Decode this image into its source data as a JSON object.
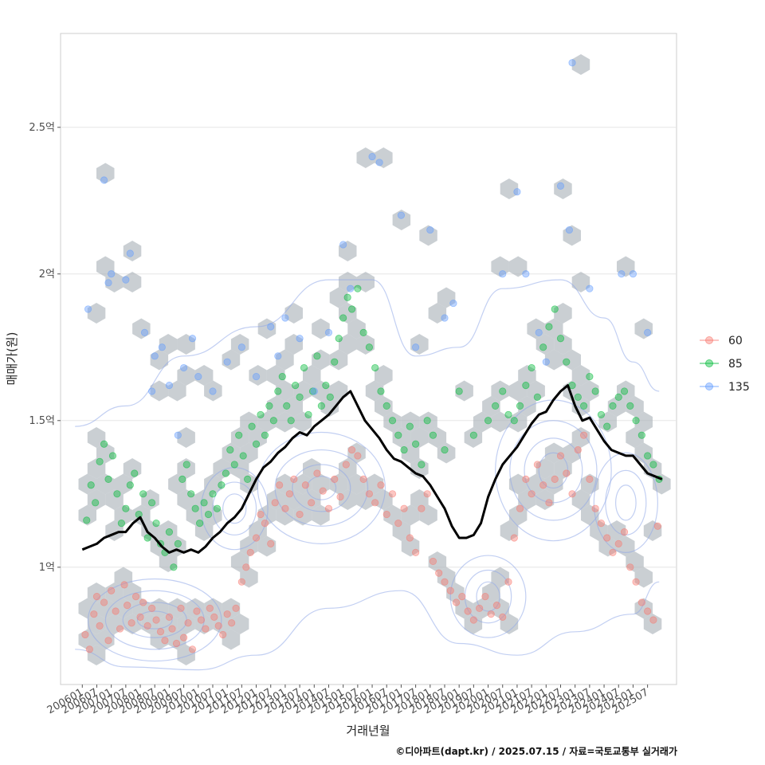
{
  "chart_data": {
    "type": "scatter",
    "title": "",
    "xlabel": "거래년월",
    "ylabel": "매매가(원)",
    "caption": "©디아파트(dapt.kr) / 2025.07.15 / 자료=국토교통부 실거래가",
    "x_ticks": [
      "200601",
      "200607",
      "200701",
      "200707",
      "200801",
      "200807",
      "200901",
      "200907",
      "201001",
      "201007",
      "201101",
      "201107",
      "201201",
      "201207",
      "201301",
      "201307",
      "201401",
      "201407",
      "201501",
      "201507",
      "201601",
      "201607",
      "201701",
      "201707",
      "201801",
      "201807",
      "201901",
      "201907",
      "202001",
      "202007",
      "202101",
      "202107",
      "202201",
      "202207",
      "202301",
      "202307",
      "202401",
      "202407",
      "202501",
      "202507"
    ],
    "y_ticks": [
      {
        "value": 1.0,
        "label": "1억"
      },
      {
        "value": 1.5,
        "label": "1.5억"
      },
      {
        "value": 2.0,
        "label": "2억"
      },
      {
        "value": 2.5,
        "label": "2.5억"
      }
    ],
    "ylim": [
      0.6,
      2.82
    ],
    "xlim": [
      -1.5,
      41
    ],
    "grid": true,
    "legend": {
      "position": "right",
      "entries": [
        {
          "label": "60",
          "color": "#F8766D"
        },
        {
          "label": "85",
          "color": "#00BA38"
        },
        {
          "label": "135",
          "color": "#619CFF"
        }
      ]
    },
    "moving_average": {
      "color": "#000000",
      "x": [
        0,
        0.5,
        1,
        1.5,
        2,
        2.5,
        3,
        3.5,
        4,
        4.5,
        5,
        5.5,
        6,
        6.5,
        7,
        7.5,
        8,
        8.5,
        9,
        9.5,
        10,
        10.5,
        11,
        11.5,
        12,
        12.5,
        13,
        13.5,
        14,
        14.5,
        15,
        15.5,
        16,
        16.5,
        17,
        17.5,
        18,
        18.5,
        19,
        19.5,
        20,
        20.5,
        21,
        21.5,
        22,
        22.5,
        23,
        23.5,
        24,
        24.5,
        25,
        25.5,
        26,
        26.5,
        27,
        27.5,
        28,
        28.5,
        29,
        29.5,
        30,
        30.5,
        31,
        31.5,
        32,
        32.5,
        33,
        33.5,
        34,
        34.5,
        35,
        35.5,
        36,
        36.5,
        37,
        37.5,
        38,
        38.5,
        39,
        39.5,
        40
      ],
      "y": [
        1.06,
        1.07,
        1.08,
        1.1,
        1.11,
        1.12,
        1.12,
        1.15,
        1.17,
        1.12,
        1.1,
        1.07,
        1.05,
        1.06,
        1.05,
        1.06,
        1.05,
        1.07,
        1.1,
        1.12,
        1.15,
        1.17,
        1.2,
        1.25,
        1.3,
        1.34,
        1.36,
        1.39,
        1.41,
        1.44,
        1.46,
        1.45,
        1.48,
        1.5,
        1.52,
        1.55,
        1.58,
        1.6,
        1.55,
        1.5,
        1.47,
        1.44,
        1.4,
        1.37,
        1.36,
        1.34,
        1.32,
        1.31,
        1.28,
        1.24,
        1.2,
        1.14,
        1.1,
        1.1,
        1.11,
        1.15,
        1.24,
        1.3,
        1.35,
        1.38,
        1.41,
        1.45,
        1.49,
        1.52,
        1.53,
        1.57,
        1.6,
        1.62,
        1.55,
        1.5,
        1.51,
        1.47,
        1.43,
        1.4,
        1.39,
        1.38,
        1.38,
        1.35,
        1.32,
        1.31,
        1.3
      ]
    },
    "series": [
      {
        "name": "60",
        "color": "#F8766D",
        "points": [
          [
            0.2,
            0.77
          ],
          [
            0.5,
            0.72
          ],
          [
            0.8,
            0.84
          ],
          [
            1.0,
            0.9
          ],
          [
            1.2,
            0.8
          ],
          [
            1.5,
            0.88
          ],
          [
            1.8,
            0.75
          ],
          [
            2.0,
            0.92
          ],
          [
            2.3,
            0.85
          ],
          [
            2.6,
            0.79
          ],
          [
            2.9,
            0.94
          ],
          [
            3.1,
            0.87
          ],
          [
            3.4,
            0.81
          ],
          [
            3.7,
            0.9
          ],
          [
            4.0,
            0.83
          ],
          [
            4.2,
            0.88
          ],
          [
            4.5,
            0.8
          ],
          [
            4.8,
            0.86
          ],
          [
            5.1,
            0.82
          ],
          [
            5.4,
            0.78
          ],
          [
            5.7,
            0.75
          ],
          [
            6.0,
            0.83
          ],
          [
            6.2,
            0.79
          ],
          [
            6.5,
            0.74
          ],
          [
            6.8,
            0.86
          ],
          [
            7.0,
            0.76
          ],
          [
            7.3,
            0.81
          ],
          [
            7.6,
            0.72
          ],
          [
            7.9,
            0.85
          ],
          [
            8.2,
            0.82
          ],
          [
            8.5,
            0.79
          ],
          [
            8.8,
            0.86
          ],
          [
            9.1,
            0.83
          ],
          [
            9.4,
            0.8
          ],
          [
            9.7,
            0.77
          ],
          [
            10.0,
            0.84
          ],
          [
            10.3,
            0.81
          ],
          [
            10.6,
            0.86
          ],
          [
            11.0,
            0.95
          ],
          [
            11.3,
            1.0
          ],
          [
            11.6,
            1.05
          ],
          [
            12.0,
            1.1
          ],
          [
            12.3,
            1.18
          ],
          [
            12.6,
            1.15
          ],
          [
            13.0,
            1.08
          ],
          [
            13.3,
            1.22
          ],
          [
            13.6,
            1.28
          ],
          [
            14.0,
            1.2
          ],
          [
            14.3,
            1.25
          ],
          [
            14.6,
            1.3
          ],
          [
            15.0,
            1.18
          ],
          [
            15.4,
            1.28
          ],
          [
            15.8,
            1.22
          ],
          [
            16.2,
            1.32
          ],
          [
            16.6,
            1.26
          ],
          [
            17.0,
            1.2
          ],
          [
            17.4,
            1.3
          ],
          [
            17.8,
            1.24
          ],
          [
            18.2,
            1.35
          ],
          [
            18.6,
            1.4
          ],
          [
            19.0,
            1.38
          ],
          [
            19.4,
            1.3
          ],
          [
            19.8,
            1.25
          ],
          [
            20.2,
            1.22
          ],
          [
            20.6,
            1.28
          ],
          [
            21.0,
            1.18
          ],
          [
            21.4,
            1.25
          ],
          [
            21.8,
            1.15
          ],
          [
            22.2,
            1.2
          ],
          [
            22.6,
            1.1
          ],
          [
            23.0,
            1.05
          ],
          [
            23.4,
            1.2
          ],
          [
            23.8,
            1.25
          ],
          [
            24.2,
            1.02
          ],
          [
            24.6,
            0.98
          ],
          [
            25.0,
            0.95
          ],
          [
            25.4,
            0.92
          ],
          [
            25.8,
            0.88
          ],
          [
            26.2,
            0.9
          ],
          [
            26.6,
            0.85
          ],
          [
            27.0,
            0.82
          ],
          [
            27.4,
            0.86
          ],
          [
            27.8,
            0.9
          ],
          [
            28.2,
            0.84
          ],
          [
            28.6,
            0.87
          ],
          [
            29.0,
            0.83
          ],
          [
            29.4,
            0.95
          ],
          [
            29.8,
            1.1
          ],
          [
            30.2,
            1.2
          ],
          [
            30.6,
            1.3
          ],
          [
            31.0,
            1.25
          ],
          [
            31.4,
            1.35
          ],
          [
            31.8,
            1.28
          ],
          [
            32.2,
            1.22
          ],
          [
            32.6,
            1.3
          ],
          [
            33.0,
            1.38
          ],
          [
            33.4,
            1.32
          ],
          [
            33.8,
            1.25
          ],
          [
            34.2,
            1.4
          ],
          [
            34.6,
            1.45
          ],
          [
            35.0,
            1.3
          ],
          [
            35.4,
            1.2
          ],
          [
            35.8,
            1.15
          ],
          [
            36.2,
            1.1
          ],
          [
            36.6,
            1.05
          ],
          [
            37.0,
            1.08
          ],
          [
            37.4,
            1.12
          ],
          [
            37.8,
            1.0
          ],
          [
            38.2,
            0.95
          ],
          [
            38.6,
            0.88
          ],
          [
            39.0,
            0.85
          ],
          [
            39.4,
            0.82
          ],
          [
            39.7,
            1.14
          ]
        ]
      },
      {
        "name": "85",
        "color": "#00BA38",
        "points": [
          [
            0.3,
            1.16
          ],
          [
            0.6,
            1.28
          ],
          [
            0.9,
            1.22
          ],
          [
            1.2,
            1.36
          ],
          [
            1.5,
            1.42
          ],
          [
            1.8,
            1.3
          ],
          [
            2.1,
            1.38
          ],
          [
            2.4,
            1.25
          ],
          [
            2.7,
            1.15
          ],
          [
            3.0,
            1.2
          ],
          [
            3.3,
            1.28
          ],
          [
            3.6,
            1.32
          ],
          [
            3.9,
            1.18
          ],
          [
            4.2,
            1.25
          ],
          [
            4.5,
            1.1
          ],
          [
            4.8,
            1.22
          ],
          [
            5.1,
            1.15
          ],
          [
            5.4,
            1.08
          ],
          [
            5.7,
            1.05
          ],
          [
            6.0,
            1.12
          ],
          [
            6.3,
            1.0
          ],
          [
            6.6,
            1.08
          ],
          [
            6.9,
            1.3
          ],
          [
            7.2,
            1.35
          ],
          [
            7.5,
            1.25
          ],
          [
            7.8,
            1.2
          ],
          [
            8.1,
            1.15
          ],
          [
            8.4,
            1.22
          ],
          [
            8.7,
            1.18
          ],
          [
            9.0,
            1.25
          ],
          [
            9.3,
            1.2
          ],
          [
            9.6,
            1.28
          ],
          [
            9.9,
            1.32
          ],
          [
            10.2,
            1.4
          ],
          [
            10.5,
            1.35
          ],
          [
            10.8,
            1.45
          ],
          [
            11.1,
            1.38
          ],
          [
            11.4,
            1.3
          ],
          [
            11.7,
            1.48
          ],
          [
            12.0,
            1.42
          ],
          [
            12.3,
            1.52
          ],
          [
            12.6,
            1.45
          ],
          [
            12.9,
            1.55
          ],
          [
            13.2,
            1.5
          ],
          [
            13.5,
            1.6
          ],
          [
            13.8,
            1.65
          ],
          [
            14.1,
            1.55
          ],
          [
            14.4,
            1.5
          ],
          [
            14.7,
            1.62
          ],
          [
            15.0,
            1.58
          ],
          [
            15.3,
            1.68
          ],
          [
            15.6,
            1.52
          ],
          [
            15.9,
            1.6
          ],
          [
            16.2,
            1.72
          ],
          [
            16.5,
            1.55
          ],
          [
            16.8,
            1.62
          ],
          [
            17.1,
            1.58
          ],
          [
            17.4,
            1.7
          ],
          [
            17.7,
            1.78
          ],
          [
            18.0,
            1.85
          ],
          [
            18.3,
            1.92
          ],
          [
            18.6,
            1.88
          ],
          [
            19.0,
            1.95
          ],
          [
            19.4,
            1.8
          ],
          [
            19.8,
            1.75
          ],
          [
            20.2,
            1.68
          ],
          [
            20.6,
            1.6
          ],
          [
            21.0,
            1.55
          ],
          [
            21.4,
            1.5
          ],
          [
            21.8,
            1.45
          ],
          [
            22.2,
            1.4
          ],
          [
            22.6,
            1.48
          ],
          [
            23.0,
            1.42
          ],
          [
            23.4,
            1.35
          ],
          [
            23.8,
            1.5
          ],
          [
            24.2,
            1.45
          ],
          [
            25.0,
            1.4
          ],
          [
            26.0,
            1.6
          ],
          [
            27.0,
            1.45
          ],
          [
            28.0,
            1.5
          ],
          [
            28.5,
            1.55
          ],
          [
            29.0,
            1.6
          ],
          [
            29.4,
            1.52
          ],
          [
            29.8,
            1.5
          ],
          [
            30.2,
            1.55
          ],
          [
            30.6,
            1.62
          ],
          [
            31.0,
            1.68
          ],
          [
            31.4,
            1.58
          ],
          [
            31.8,
            1.75
          ],
          [
            32.2,
            1.82
          ],
          [
            32.6,
            1.88
          ],
          [
            33.0,
            1.78
          ],
          [
            33.4,
            1.7
          ],
          [
            33.8,
            1.62
          ],
          [
            34.2,
            1.58
          ],
          [
            34.6,
            1.55
          ],
          [
            35.0,
            1.65
          ],
          [
            35.4,
            1.6
          ],
          [
            35.8,
            1.52
          ],
          [
            36.2,
            1.48
          ],
          [
            36.6,
            1.55
          ],
          [
            37.0,
            1.58
          ],
          [
            37.4,
            1.6
          ],
          [
            37.8,
            1.55
          ],
          [
            38.2,
            1.5
          ],
          [
            38.6,
            1.45
          ],
          [
            39.0,
            1.38
          ],
          [
            39.4,
            1.35
          ],
          [
            39.8,
            1.3
          ]
        ]
      },
      {
        "name": "135",
        "color": "#619CFF",
        "points": [
          [
            0.4,
            1.88
          ],
          [
            1.5,
            2.32
          ],
          [
            1.8,
            1.97
          ],
          [
            2.0,
            2.0
          ],
          [
            3.3,
            2.07
          ],
          [
            3.0,
            1.98
          ],
          [
            4.3,
            1.8
          ],
          [
            4.8,
            1.6
          ],
          [
            5.0,
            1.72
          ],
          [
            5.5,
            1.75
          ],
          [
            6.0,
            1.62
          ],
          [
            6.6,
            1.45
          ],
          [
            7.0,
            1.68
          ],
          [
            7.6,
            1.78
          ],
          [
            8.0,
            1.65
          ],
          [
            9.0,
            1.6
          ],
          [
            10.0,
            1.7
          ],
          [
            11.0,
            1.75
          ],
          [
            12.0,
            1.65
          ],
          [
            13.0,
            1.82
          ],
          [
            13.5,
            1.72
          ],
          [
            14.0,
            1.85
          ],
          [
            15.0,
            1.78
          ],
          [
            16.0,
            1.6
          ],
          [
            17.0,
            1.8
          ],
          [
            18.0,
            2.1
          ],
          [
            18.5,
            1.95
          ],
          [
            20.0,
            2.4
          ],
          [
            20.5,
            2.38
          ],
          [
            22.0,
            2.2
          ],
          [
            23.0,
            1.75
          ],
          [
            24.0,
            2.15
          ],
          [
            25.0,
            1.85
          ],
          [
            25.6,
            1.9
          ],
          [
            29.0,
            2.0
          ],
          [
            30.0,
            2.28
          ],
          [
            30.6,
            2.0
          ],
          [
            31.5,
            1.8
          ],
          [
            32.0,
            1.7
          ],
          [
            33.0,
            2.3
          ],
          [
            33.6,
            2.15
          ],
          [
            33.8,
            2.72
          ],
          [
            35.0,
            1.95
          ],
          [
            37.2,
            2.0
          ],
          [
            38.0,
            2.0
          ],
          [
            39.0,
            1.8
          ]
        ]
      }
    ]
  }
}
